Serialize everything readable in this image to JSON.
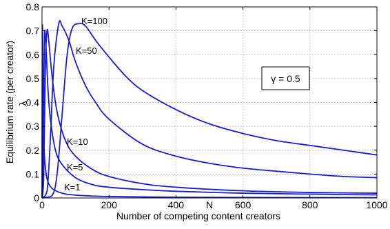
{
  "chart_data": {
    "type": "line",
    "xlabel": "Number of competing content creators",
    "xlabel_symbol": "N",
    "ylabel": "Equilibrium rate (per creator)",
    "ylabel_symbol": "λ",
    "xlim": [
      0,
      1000
    ],
    "ylim": [
      0,
      0.8
    ],
    "xticks": [
      0,
      200,
      400,
      600,
      800,
      1000
    ],
    "yticks": [
      0,
      0.1,
      0.2,
      0.3,
      0.4,
      0.5,
      0.6,
      0.7,
      0.8
    ],
    "grid": true,
    "annotation": "γ = 0.5",
    "series": [
      {
        "name": "K=1",
        "x": [
          0,
          1,
          2,
          3,
          5,
          8,
          15,
          30,
          60,
          100,
          200,
          400,
          600,
          800,
          1000
        ],
        "y": [
          0,
          0.7,
          0.55,
          0.4,
          0.25,
          0.16,
          0.08,
          0.04,
          0.02,
          0.012,
          0.006,
          0.003,
          0.002,
          0.0015,
          0.001
        ]
      },
      {
        "name": "K=5",
        "x": [
          0,
          3,
          6,
          8,
          12,
          18,
          25,
          40,
          60,
          100,
          150,
          200,
          300,
          400,
          600,
          800,
          1000
        ],
        "y": [
          0,
          0.12,
          0.55,
          0.7,
          0.63,
          0.45,
          0.33,
          0.2,
          0.14,
          0.085,
          0.056,
          0.045,
          0.035,
          0.028,
          0.02,
          0.016,
          0.013
        ]
      },
      {
        "name": "K=10",
        "x": [
          0,
          5,
          10,
          15,
          20,
          30,
          45,
          70,
          100,
          150,
          200,
          300,
          400,
          600,
          800,
          1000
        ],
        "y": [
          0,
          0.09,
          0.55,
          0.7,
          0.66,
          0.51,
          0.36,
          0.24,
          0.175,
          0.12,
          0.09,
          0.06,
          0.045,
          0.03,
          0.023,
          0.02
        ]
      },
      {
        "name": "K=50",
        "x": [
          0,
          15,
          25,
          35,
          50,
          60,
          80,
          100,
          130,
          160,
          200,
          300,
          400,
          500,
          600,
          700,
          800,
          900,
          1000
        ],
        "y": [
          0,
          0.03,
          0.25,
          0.55,
          0.73,
          0.72,
          0.66,
          0.57,
          0.47,
          0.4,
          0.33,
          0.225,
          0.175,
          0.145,
          0.125,
          0.112,
          0.1,
          0.09,
          0.085
        ]
      },
      {
        "name": "K=100",
        "x": [
          0,
          30,
          45,
          60,
          75,
          90,
          110,
          130,
          160,
          200,
          250,
          300,
          400,
          500,
          600,
          700,
          800,
          900,
          1000
        ],
        "y": [
          0,
          0.01,
          0.1,
          0.35,
          0.6,
          0.71,
          0.73,
          0.72,
          0.66,
          0.59,
          0.51,
          0.45,
          0.37,
          0.31,
          0.27,
          0.24,
          0.22,
          0.2,
          0.18
        ]
      }
    ],
    "line_color": "#1a1ad9"
  }
}
